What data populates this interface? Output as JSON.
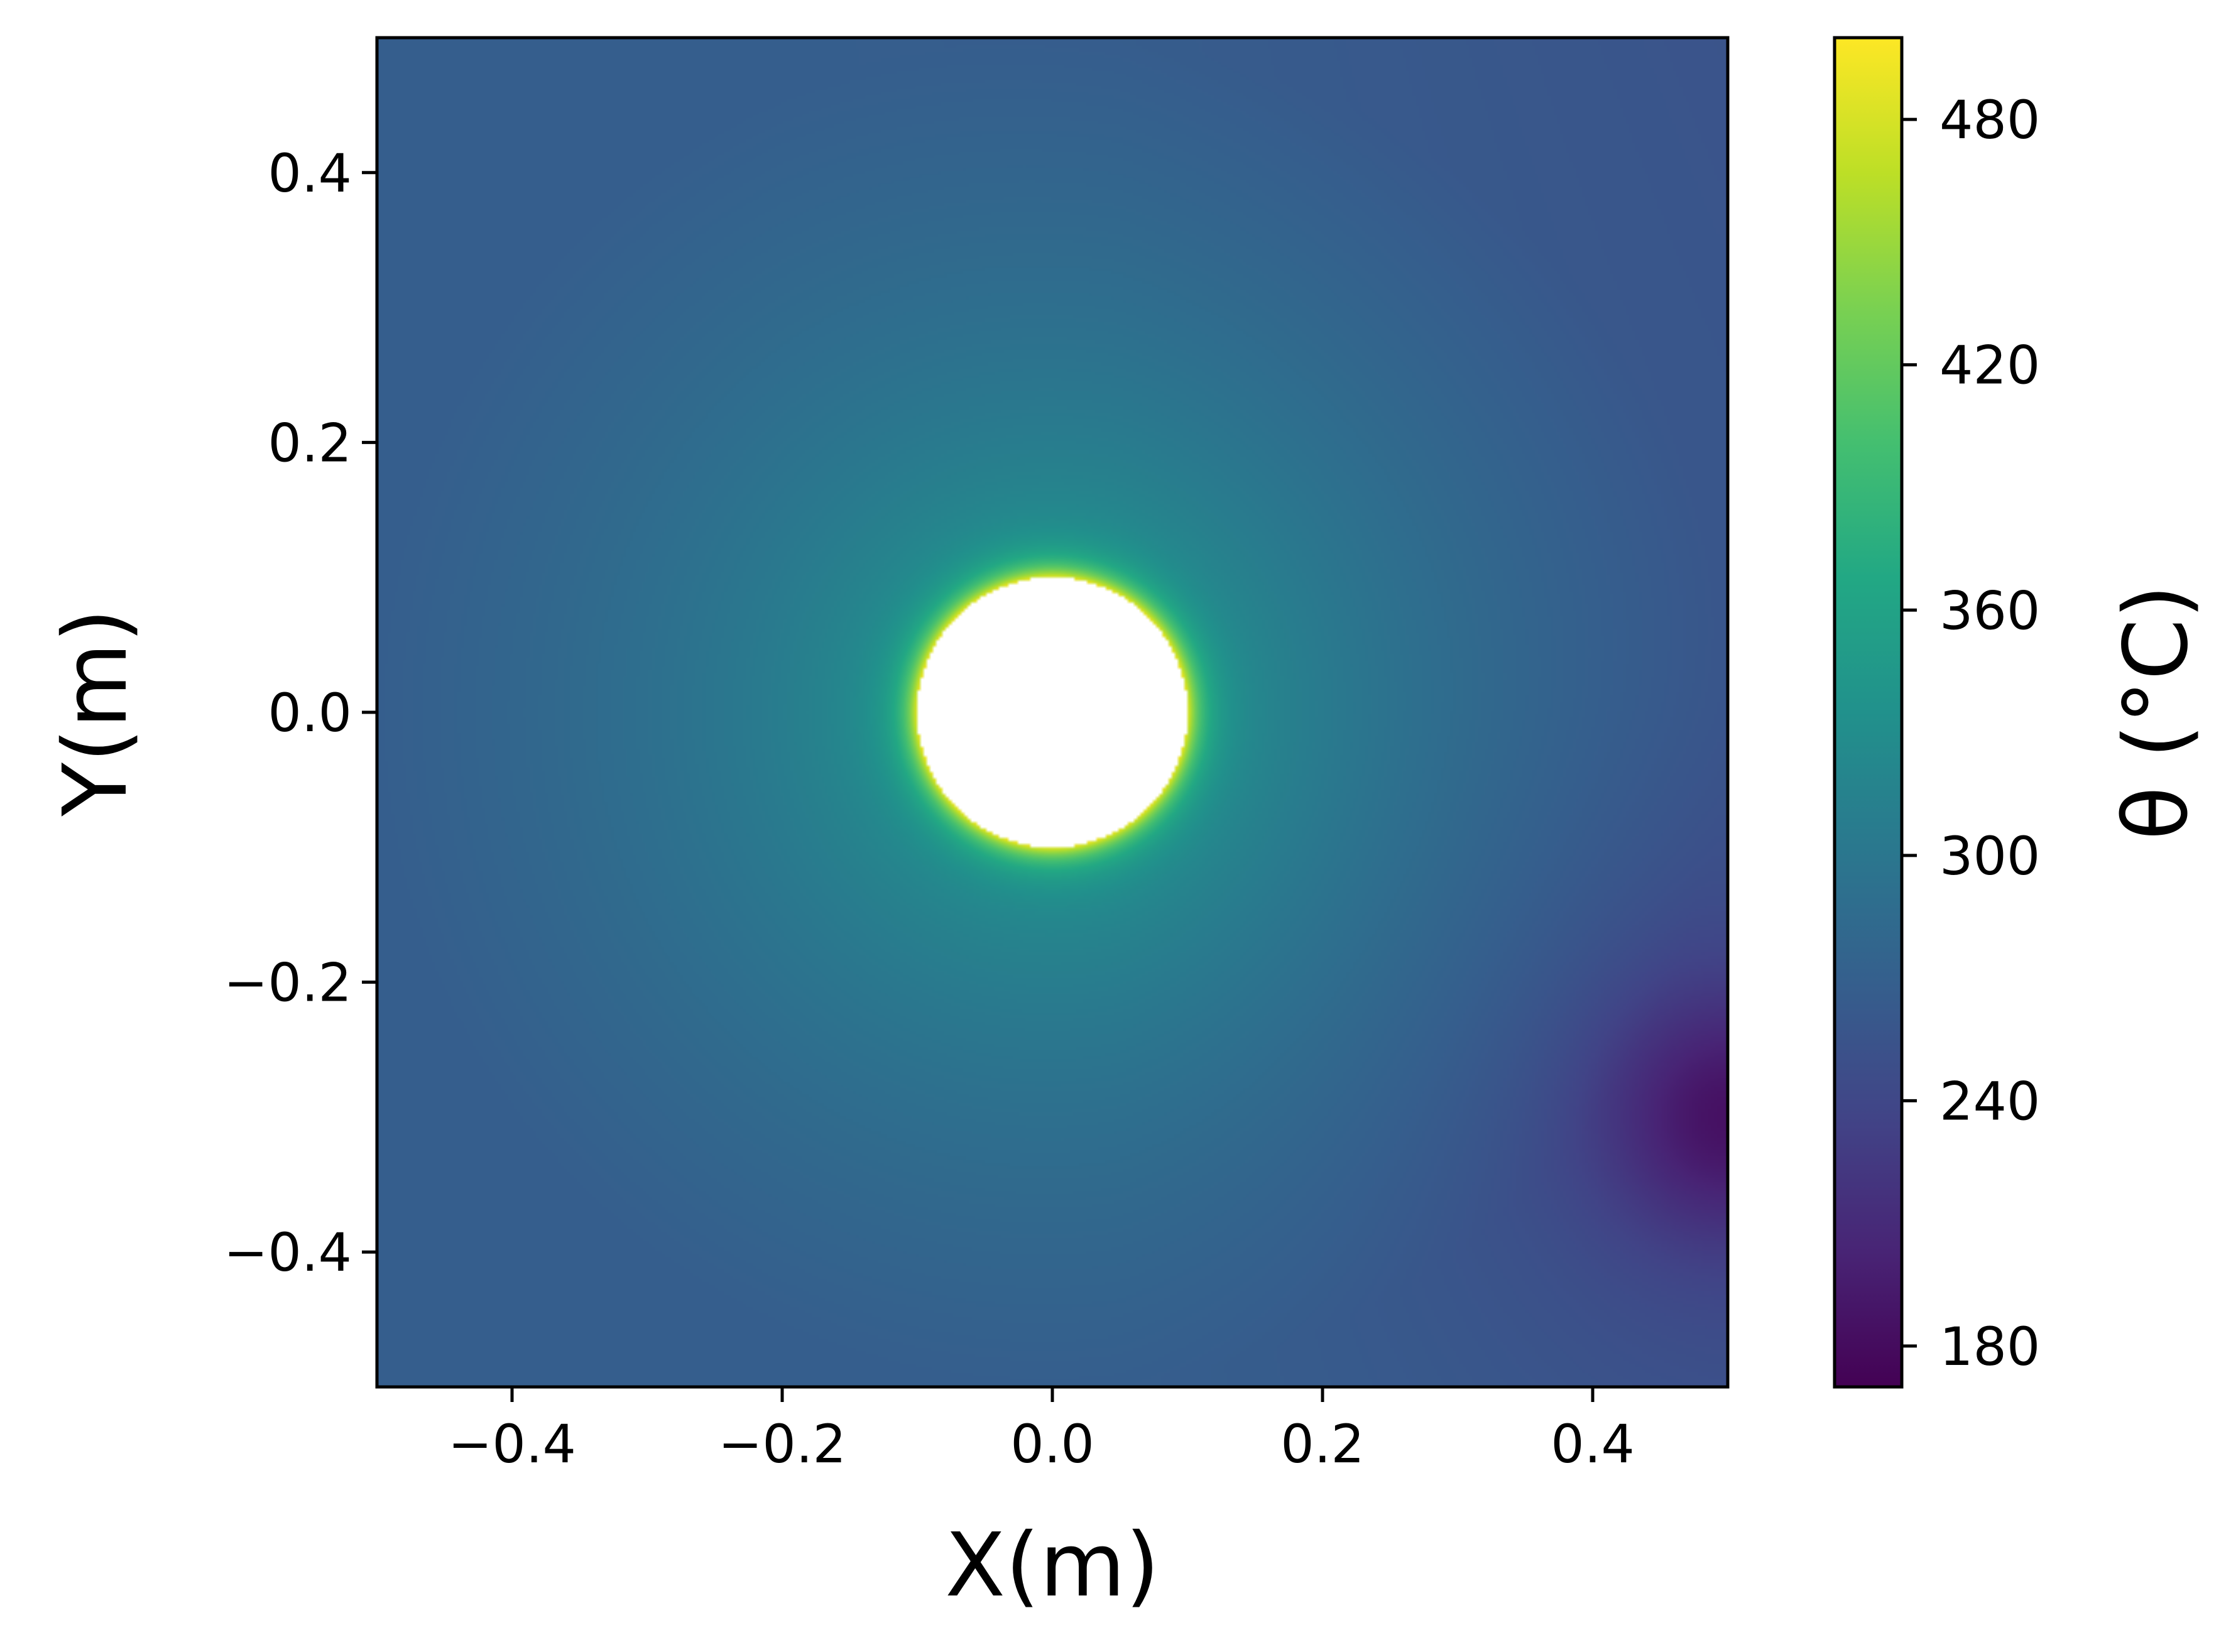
{
  "chart_data": {
    "type": "heatmap",
    "title": "",
    "xlabel": "X(m)",
    "ylabel": "Y(m)",
    "xlim": [
      -0.5,
      0.5
    ],
    "ylim": [
      -0.5,
      0.5
    ],
    "x_ticks": [
      -0.4,
      -0.2,
      0.0,
      0.2,
      0.4
    ],
    "x_tick_labels": [
      "−0.4",
      "−0.2",
      "0.0",
      "0.2",
      "0.4"
    ],
    "y_ticks": [
      -0.4,
      -0.2,
      0.0,
      0.2,
      0.4
    ],
    "y_tick_labels": [
      "−0.4",
      "−0.2",
      "0.0",
      "0.2",
      "0.4"
    ],
    "colormap": "viridis",
    "colorbar": {
      "label": "θ (°C)",
      "range": [
        170,
        500
      ],
      "ticks": [
        180,
        240,
        300,
        360,
        420,
        480
      ],
      "tick_labels": [
        "180",
        "240",
        "300",
        "360",
        "420",
        "480"
      ]
    },
    "hole": {
      "center": [
        0.0,
        0.0
      ],
      "radius": 0.1,
      "fill": "#ffffff"
    },
    "field": {
      "hole_edge_value": 490,
      "value_near_hole": 340,
      "value_at_left_edge": 268,
      "value_at_top_right_corner": 233,
      "min_value": 175,
      "min_location": [
        0.5,
        -0.3
      ]
    },
    "grid": false
  }
}
